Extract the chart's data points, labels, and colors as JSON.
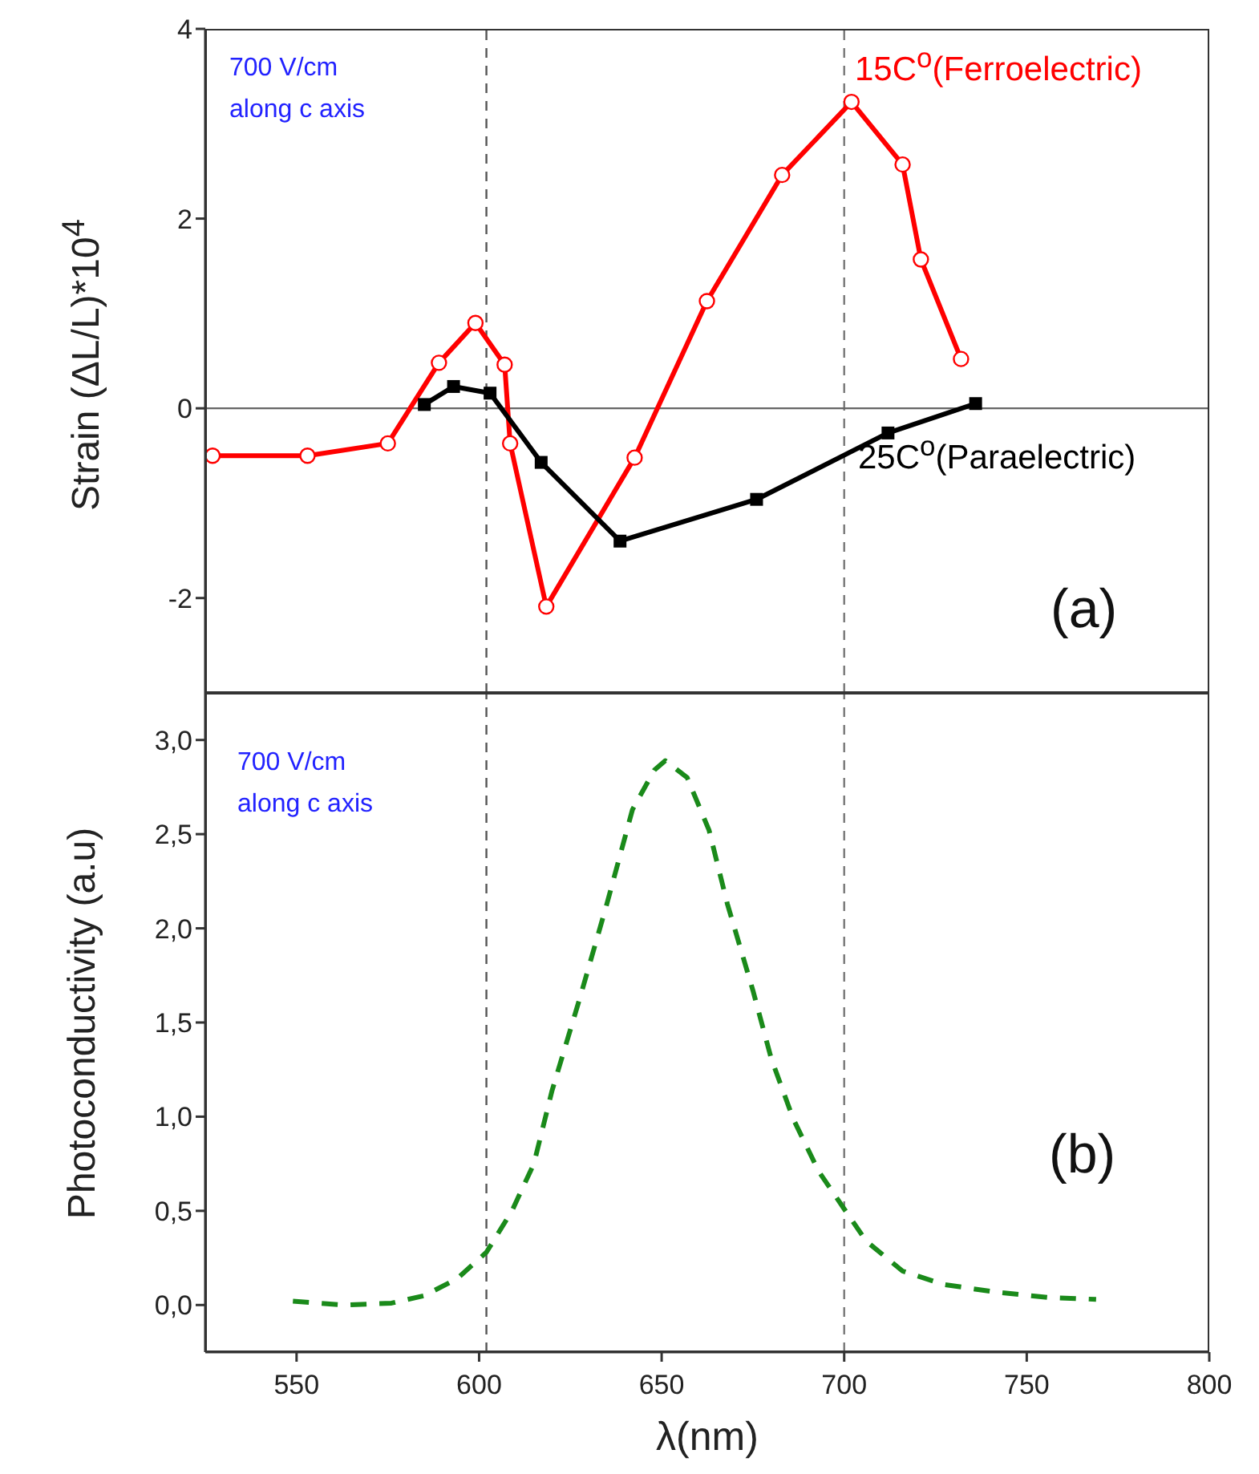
{
  "chart_data": [
    {
      "type": "line",
      "ylabel": "Strain (ΔL/L)*10$^{4}$",
      "xlim": [
        525,
        800
      ],
      "xticks": [
        550,
        600,
        650,
        700,
        750,
        800
      ],
      "ylim": [
        -3,
        4
      ],
      "yticks": [
        -2,
        0,
        2,
        4
      ],
      "tick_labels": "y",
      "annotations": [
        "700 V/cm\nalong c axis",
        "(a)"
      ],
      "ref_lines": [
        {
          "axis": "x",
          "value": 602,
          "color": "#555555",
          "line_style": "dashed"
        },
        {
          "axis": "x",
          "value": 700,
          "color": "#777777",
          "line_style": "dashed"
        },
        {
          "axis": "y",
          "value": 0,
          "color": "#666666",
          "line_style": "solid"
        }
      ],
      "series": [
        {
          "name": "15C$^{o}$(Ferroelectric)",
          "color": "#ff0000",
          "marker": "circle",
          "x": [
            527,
            553,
            575,
            589,
            599,
            607,
            608.5,
            618.4,
            642.6,
            662.4,
            683,
            702,
            716,
            721,
            732
          ],
          "values": [
            -0.5,
            -0.5,
            -0.37,
            0.48,
            0.9,
            0.46,
            -0.37,
            -2.09,
            -0.52,
            1.13,
            2.46,
            3.23,
            2.57,
            1.57,
            0.52
          ]
        },
        {
          "name": "25C$^{o}$(Paraelectric)",
          "color": "#000000",
          "marker": "square",
          "x": [
            585,
            593,
            603,
            617,
            638.6,
            676,
            712,
            736
          ],
          "values": [
            0.04,
            0.23,
            0.16,
            -0.57,
            -1.4,
            -0.96,
            -0.26,
            0.05
          ]
        }
      ]
    },
    {
      "type": "line",
      "xlabel": "λ(nm)",
      "ylabel": "Photoconductivity (a.u)",
      "xlim": [
        525,
        800
      ],
      "xticks": [
        550,
        600,
        650,
        700,
        750,
        800
      ],
      "ylim": [
        -0.25,
        3.25
      ],
      "yticks": [
        {
          "value": 0,
          "label": "0,0"
        },
        {
          "value": 0.5,
          "label": "0,5"
        },
        {
          "value": 1,
          "label": "1,0"
        },
        {
          "value": 1.5,
          "label": "1,5"
        },
        {
          "value": 2,
          "label": "2,0"
        },
        {
          "value": 2.5,
          "label": "2,5"
        },
        {
          "value": 3,
          "label": "3,0"
        }
      ],
      "annotations": [
        "700 V/cm\nalong c axis",
        "(b)"
      ],
      "ref_lines": [
        {
          "axis": "x",
          "value": 602,
          "color": "#555555",
          "line_style": "dashed"
        },
        {
          "axis": "x",
          "value": 700,
          "color": "#777777",
          "line_style": "dashed"
        }
      ],
      "series": [
        {
          "color": "#1a8a1a",
          "marker": "none",
          "line_style": "dashed",
          "x": [
            549,
            563,
            576,
            585,
            594,
            602,
            609,
            615,
            620,
            627.6,
            635,
            642,
            648,
            651,
            657,
            663,
            668,
            675,
            680,
            686,
            693,
            700,
            706,
            716,
            727,
            741,
            756,
            769
          ],
          "values": [
            0.02,
            0,
            0.01,
            0.05,
            0.14,
            0.28,
            0.5,
            0.75,
            1.14,
            1.63,
            2.13,
            2.63,
            2.84,
            2.89,
            2.8,
            2.52,
            2.13,
            1.67,
            1.31,
            0.99,
            0.71,
            0.51,
            0.34,
            0.18,
            0.11,
            0.07,
            0.04,
            0.03
          ]
        }
      ]
    }
  ]
}
